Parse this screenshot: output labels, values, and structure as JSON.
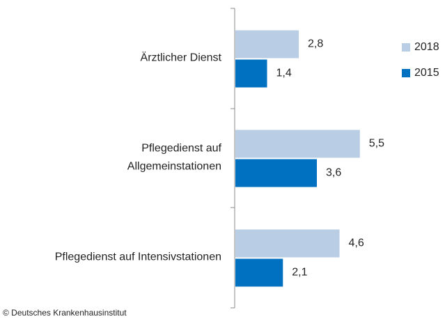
{
  "chart_data": {
    "type": "bar",
    "orientation": "horizontal",
    "categories": [
      "Ärztlicher Dienst",
      "Pflegedienst auf\nAllgemeinstationen",
      "Pflegedienst auf Intensivstationen"
    ],
    "series": [
      {
        "name": "2018",
        "color": "#b9cde5",
        "values": [
          2.8,
          5.5,
          4.6
        ],
        "value_labels": [
          "2,8",
          "5,5",
          "4,6"
        ]
      },
      {
        "name": "2015",
        "color": "#0070c0",
        "values": [
          1.4,
          3.6,
          2.1
        ],
        "value_labels": [
          "1,4",
          "3,6",
          "2,1"
        ]
      }
    ],
    "legend": "right",
    "source": "© Deutsches Krankenhausinstitut"
  }
}
